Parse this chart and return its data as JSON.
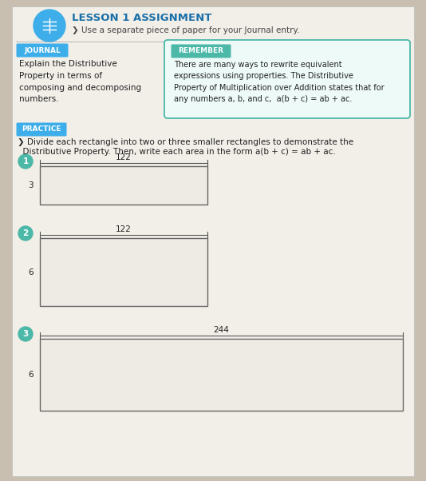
{
  "background_color": "#c8bfb0",
  "page_color": "#f2efe9",
  "title": "LESSON 1 ASSIGNMENT",
  "subtitle": "❯ Use a separate piece of paper for your Journal entry.",
  "journal_label": "JOURNAL",
  "journal_label_color": "#3daee9",
  "remember_label": "REMEMBER",
  "remember_label_color": "#4cb8a8",
  "journal_text": "Explain the Distributive\nProperty in terms of\ncomposing and decomposing\nnumbers.",
  "remember_text": "There are many ways to rewrite equivalent\nexpressions using properties. The Distributive\nProperty of Multiplication over Addition states that for\nany numbers a, b, and c,  a(b + c) = ab + ac.",
  "practice_label": "PRACTICE",
  "practice_label_color": "#3daee9",
  "practice_instruction_1": "❯ Divide each rectangle into two or three smaller rectangles to demonstrate the",
  "practice_instruction_2": "  Distributive Property. Then, write each area in the form a(b + c) = ab + ac.",
  "rect1_width_label": "122",
  "rect1_height_label": "3",
  "rect2_width_label": "122",
  "rect2_height_label": "6",
  "rect3_width_label": "244",
  "rect3_height_label": "6",
  "circle_color": "#4cb8a8",
  "title_color": "#1a6fa8",
  "rect_fill": "#eeeae4",
  "rect_stroke": "#666666",
  "icon_color": "#3daee9"
}
